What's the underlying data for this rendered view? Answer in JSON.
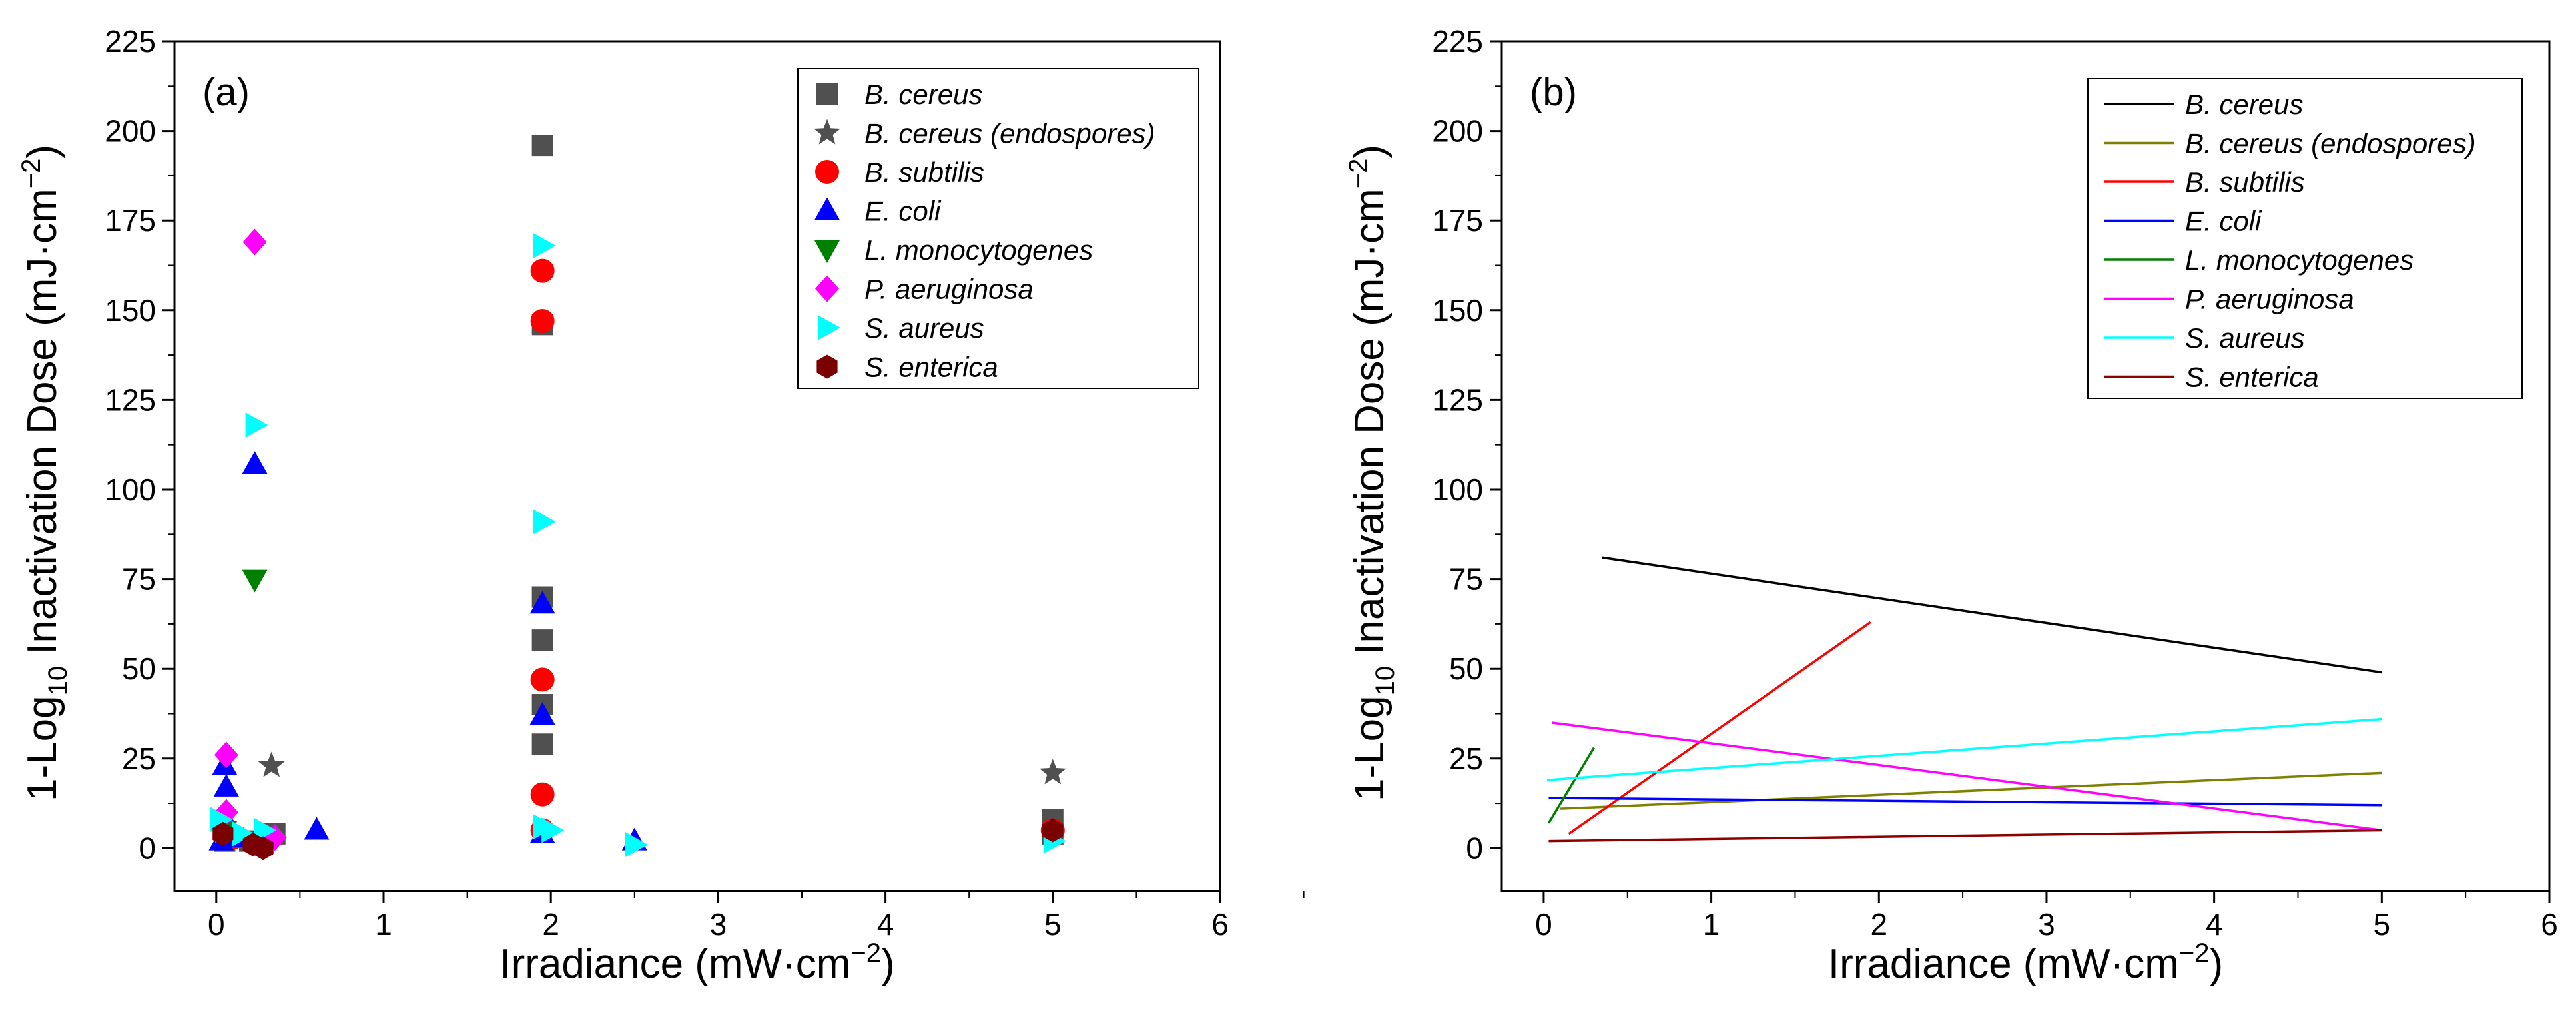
{
  "chart_data": [
    {
      "type": "scatter",
      "panel_label": "(a)",
      "xlabel_main": "Irradiance (mW·cm",
      "xlabel_sup": "−2",
      "xlabel_close": ")",
      "ylabel_pre": "1-Log",
      "ylabel_sub": "10",
      "ylabel_mid": " Inactivation Dose (mJ·cm",
      "ylabel_sup": "−2",
      "ylabel_close": ")",
      "xlim": [
        -0.25,
        6
      ],
      "ylim": [
        -12,
        225
      ],
      "xticks": [
        0,
        1,
        2,
        3,
        4,
        5,
        6
      ],
      "yticks": [
        0,
        25,
        50,
        75,
        100,
        125,
        150,
        175,
        200,
        225
      ],
      "legend_position": "top-right",
      "series": [
        {
          "name": "B. cereus",
          "marker": "square",
          "color": "#505050",
          "points": [
            [
              0.05,
              2
            ],
            [
              0.1,
              3
            ],
            [
              0.2,
              2
            ],
            [
              0.3,
              3
            ],
            [
              0.35,
              4
            ],
            [
              1.95,
              196
            ],
            [
              1.95,
              146
            ],
            [
              1.95,
              70
            ],
            [
              1.95,
              58
            ],
            [
              1.95,
              40
            ],
            [
              1.95,
              29
            ],
            [
              5,
              8
            ],
            [
              5,
              4
            ]
          ]
        },
        {
          "name": "B. cereus (endospores)",
          "marker": "star",
          "color": "#505050",
          "points": [
            [
              0.33,
              23
            ],
            [
              5,
              21
            ]
          ]
        },
        {
          "name": "B. subtilis",
          "marker": "circle",
          "color": "#ff0000",
          "points": [
            [
              1.95,
              161
            ],
            [
              1.95,
              147
            ],
            [
              1.95,
              47
            ],
            [
              1.95,
              15
            ],
            [
              1.95,
              5
            ],
            [
              5,
              5
            ],
            [
              0.1,
              3
            ]
          ]
        },
        {
          "name": "E. coli",
          "marker": "triangle-up",
          "color": "#0000ff",
          "points": [
            [
              0.23,
              107
            ],
            [
              0.05,
              23
            ],
            [
              0.06,
              17
            ],
            [
              0.08,
              6
            ],
            [
              0.1,
              3
            ],
            [
              0.6,
              5
            ],
            [
              1.95,
              68
            ],
            [
              1.95,
              37
            ],
            [
              1.95,
              4
            ],
            [
              2.5,
              2
            ],
            [
              0.03,
              2
            ]
          ]
        },
        {
          "name": "L. monocytogenes",
          "marker": "triangle-down",
          "color": "#008000",
          "points": [
            [
              0.23,
              75
            ],
            [
              0.05,
              5
            ]
          ]
        },
        {
          "name": "P. aeruginosa",
          "marker": "diamond",
          "color": "#ff00ff",
          "points": [
            [
              0.23,
              169
            ],
            [
              0.06,
              26
            ],
            [
              0.06,
              10
            ],
            [
              0.35,
              3
            ]
          ]
        },
        {
          "name": "S. aureus",
          "marker": "triangle-right",
          "color": "#00ffff",
          "points": [
            [
              0.23,
              118
            ],
            [
              1.95,
              168
            ],
            [
              1.95,
              91
            ],
            [
              1.95,
              6
            ],
            [
              2.0,
              5
            ],
            [
              0.02,
              8
            ],
            [
              0.05,
              5
            ],
            [
              0.15,
              4
            ],
            [
              0.28,
              5
            ],
            [
              2.5,
              1
            ],
            [
              5,
              2
            ]
          ]
        },
        {
          "name": "S. enterica",
          "marker": "hexagon",
          "color": "#7b0000",
          "points": [
            [
              0.04,
              4
            ],
            [
              0.22,
              1
            ],
            [
              0.28,
              0
            ],
            [
              5,
              5
            ]
          ]
        }
      ]
    },
    {
      "type": "line",
      "panel_label": "(b)",
      "xlabel_main": "Irradiance (mW·cm",
      "xlabel_sup": "−2",
      "xlabel_close": ")",
      "ylabel_pre": "1-Log",
      "ylabel_sub": "10",
      "ylabel_mid": " Inactivation Dose (mJ·cm",
      "ylabel_sup": "−2",
      "ylabel_close": ")",
      "xlim": [
        -0.25,
        6
      ],
      "ylim": [
        -12,
        225
      ],
      "xticks": [
        0,
        1,
        2,
        3,
        4,
        5,
        6
      ],
      "yticks": [
        0,
        25,
        50,
        75,
        100,
        125,
        150,
        175,
        200,
        225
      ],
      "legend_position": "top-right",
      "series": [
        {
          "name": "B. cereus",
          "color": "#000000",
          "points": [
            [
              0.35,
              81
            ],
            [
              5,
              49
            ]
          ]
        },
        {
          "name": "B. cereus (endospores)",
          "color": "#808000",
          "points": [
            [
              0.1,
              11
            ],
            [
              5,
              21
            ]
          ]
        },
        {
          "name": "B. subtilis",
          "color": "#ff0000",
          "points": [
            [
              0.15,
              4
            ],
            [
              1.95,
              63
            ]
          ]
        },
        {
          "name": "E. coli",
          "color": "#0000ff",
          "points": [
            [
              0.03,
              14
            ],
            [
              5,
              12
            ]
          ]
        },
        {
          "name": "L. monocytogenes",
          "color": "#008000",
          "points": [
            [
              0.03,
              7
            ],
            [
              0.3,
              28
            ]
          ]
        },
        {
          "name": "P. aeruginosa",
          "color": "#ff00ff",
          "points": [
            [
              0.05,
              35
            ],
            [
              5,
              5
            ]
          ]
        },
        {
          "name": "S. aureus",
          "color": "#00ffff",
          "points": [
            [
              0.02,
              19
            ],
            [
              5,
              36
            ]
          ]
        },
        {
          "name": "S. enterica",
          "color": "#8b0000",
          "points": [
            [
              0.03,
              2
            ],
            [
              5,
              5
            ]
          ]
        }
      ]
    }
  ]
}
